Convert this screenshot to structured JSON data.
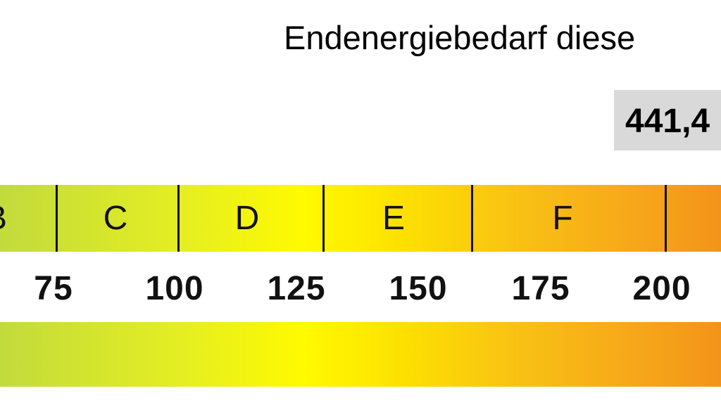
{
  "title": "Endenergiebedarf diese",
  "value": "441,4",
  "classes": [
    "B",
    "C",
    "D",
    "E",
    "F"
  ],
  "ticks": [
    "75",
    "100",
    "125",
    "150",
    "175",
    "200"
  ],
  "colors": {
    "green": "#c2db3c",
    "yellow": "#fffa00",
    "orange": "#f39419",
    "value_box": "#d9d9d9"
  }
}
